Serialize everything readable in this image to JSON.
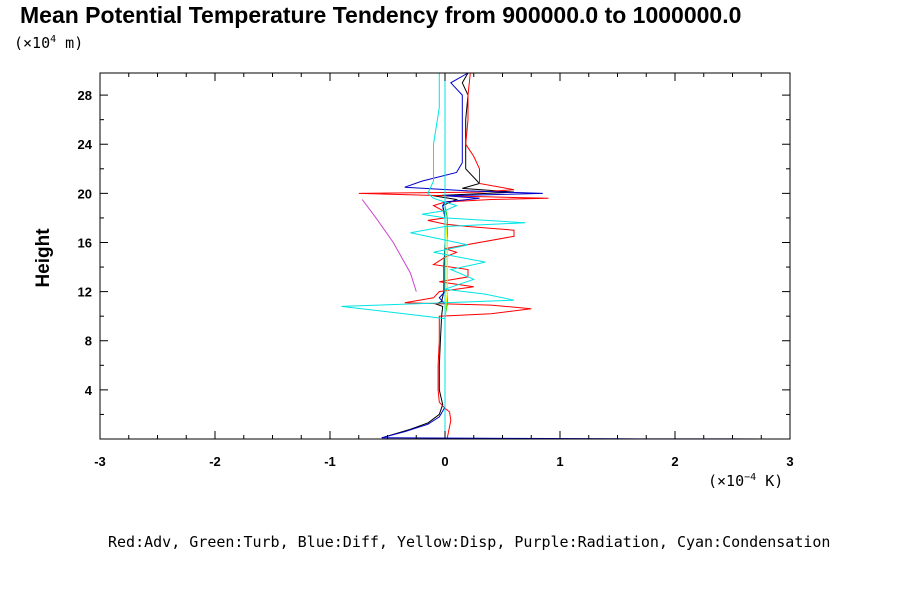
{
  "chart_data": {
    "type": "line",
    "title": "Mean Potential Temperature Tendency from 900000.0 to 1000000.0",
    "ylabel": "Height",
    "y_unit": {
      "prefix": "(×10",
      "exp": "4",
      "suffix": " m)"
    },
    "x_unit": {
      "prefix": "(×10",
      "exp": "−4",
      "suffix": " K)"
    },
    "legend_text": "Red:Adv, Green:Turb, Blue:Diff, Yellow:Disp, Purple:Radiation, Cyan:Condensation",
    "xlim": [
      -3,
      3
    ],
    "ylim": [
      0,
      29.8
    ],
    "x_ticks": [
      -3,
      -2,
      -1,
      0,
      1,
      2,
      3
    ],
    "x_tick_labels": [
      "-3",
      "-2",
      "-1",
      "0",
      "1",
      "2",
      "3"
    ],
    "y_ticks": [
      4,
      8,
      12,
      16,
      20,
      24,
      28
    ],
    "y_tick_labels": [
      "4",
      "8",
      "12",
      "16",
      "20",
      "24",
      "28"
    ],
    "series": [
      {
        "color": "#000000",
        "points": [
          [
            -0.55,
            0.1
          ],
          [
            -0.3,
            0.8
          ],
          [
            -0.15,
            1.3
          ],
          [
            -0.05,
            2
          ],
          [
            -0.02,
            2.8
          ],
          [
            -0.05,
            4
          ],
          [
            -0.05,
            6
          ],
          [
            -0.04,
            8
          ],
          [
            -0.03,
            10
          ],
          [
            -0.02,
            10.8
          ],
          [
            -0.08,
            11
          ],
          [
            -0.03,
            11.2
          ],
          [
            -0.01,
            12
          ],
          [
            -0.01,
            14
          ],
          [
            0.0,
            16
          ],
          [
            0.0,
            18
          ],
          [
            -0.02,
            19
          ],
          [
            0.1,
            19.5
          ],
          [
            -0.1,
            19.8
          ],
          [
            0.6,
            20.1
          ],
          [
            0.15,
            20.4
          ],
          [
            0.3,
            20.8
          ],
          [
            0.18,
            22
          ],
          [
            0.18,
            24
          ],
          [
            0.18,
            26
          ],
          [
            0.2,
            28
          ],
          [
            0.15,
            29
          ],
          [
            0.2,
            29.8
          ]
        ]
      },
      {
        "color": "#ff0000",
        "points": [
          [
            0.02,
            0.1
          ],
          [
            0.05,
            1.5
          ],
          [
            0.04,
            2.2
          ],
          [
            0.0,
            2.5
          ],
          [
            -0.05,
            3
          ],
          [
            -0.06,
            4
          ],
          [
            -0.06,
            6
          ],
          [
            -0.05,
            8
          ],
          [
            -0.05,
            10
          ],
          [
            0.4,
            10.2
          ],
          [
            0.75,
            10.6
          ],
          [
            0.4,
            10.9
          ],
          [
            -0.35,
            11.1
          ],
          [
            -0.1,
            11.5
          ],
          [
            -0.05,
            12
          ],
          [
            0.25,
            12.4
          ],
          [
            -0.05,
            12.8
          ],
          [
            0.2,
            13.2
          ],
          [
            0.2,
            13.8
          ],
          [
            -0.1,
            14.2
          ],
          [
            0.0,
            14.8
          ],
          [
            0.1,
            15.2
          ],
          [
            0.0,
            15.5
          ],
          [
            0.6,
            16.5
          ],
          [
            0.6,
            17
          ],
          [
            0.2,
            17.3
          ],
          [
            0.0,
            17.5
          ],
          [
            -0.15,
            17.8
          ],
          [
            0.0,
            18
          ],
          [
            0.0,
            18.5
          ],
          [
            -0.1,
            19
          ],
          [
            0.0,
            19.3
          ],
          [
            0.4,
            19.5
          ],
          [
            0.9,
            19.6
          ],
          [
            0.0,
            19.8
          ],
          [
            -0.75,
            20.0
          ],
          [
            0.3,
            20.1
          ],
          [
            0.6,
            20.3
          ],
          [
            0.3,
            20.8
          ],
          [
            0.3,
            22
          ],
          [
            0.25,
            23
          ],
          [
            0.18,
            24
          ],
          [
            0.2,
            26
          ],
          [
            0.2,
            28
          ],
          [
            0.22,
            29.8
          ]
        ]
      },
      {
        "color": "#0000cc",
        "points": [
          [
            -0.55,
            0.1
          ],
          [
            -0.35,
            0.6
          ],
          [
            -0.15,
            1.2
          ],
          [
            -0.05,
            1.8
          ],
          [
            0.0,
            2.6
          ],
          [
            0.0,
            3
          ],
          [
            0.0,
            10
          ],
          [
            0.0,
            11
          ],
          [
            -0.05,
            11.5
          ],
          [
            0.0,
            12
          ],
          [
            0.0,
            18
          ],
          [
            -0.02,
            19
          ],
          [
            0.0,
            19.3
          ],
          [
            0.3,
            19.6
          ],
          [
            0.0,
            19.8
          ],
          [
            0.85,
            20.0
          ],
          [
            0.2,
            20.2
          ],
          [
            -0.35,
            20.5
          ],
          [
            -0.2,
            21
          ],
          [
            0.1,
            21.7
          ],
          [
            0.15,
            22.5
          ],
          [
            0.15,
            24
          ],
          [
            0.15,
            26
          ],
          [
            0.15,
            28
          ],
          [
            0.05,
            29
          ],
          [
            0.2,
            29.8
          ]
        ]
      },
      {
        "color": "#00cc00",
        "points": [
          [
            0.0,
            0.1
          ],
          [
            0.0,
            10
          ],
          [
            0.02,
            11
          ],
          [
            0.02,
            14
          ],
          [
            0.02,
            18
          ],
          [
            0.0,
            19
          ],
          [
            0.0,
            29.8
          ]
        ]
      },
      {
        "color": "#ffff00",
        "points": [
          [
            0.0,
            2.5
          ],
          [
            0.0,
            10
          ],
          [
            0.02,
            12
          ],
          [
            0.02,
            16
          ],
          [
            0.0,
            18
          ]
        ]
      },
      {
        "color": "#cc44cc",
        "points": [
          [
            -0.25,
            12.0
          ],
          [
            -0.3,
            13.5
          ],
          [
            -0.45,
            16
          ],
          [
            -0.6,
            18
          ],
          [
            -0.72,
            19.5
          ]
        ]
      },
      {
        "color": "#00e5e5",
        "points": [
          [
            0.0,
            0.1
          ],
          [
            0.0,
            9.8
          ],
          [
            -0.9,
            10.8
          ],
          [
            0.0,
            11.1
          ],
          [
            0.6,
            11.3
          ],
          [
            0.35,
            11.8
          ],
          [
            0.0,
            12.2
          ],
          [
            0.25,
            13
          ],
          [
            0.05,
            13.8
          ],
          [
            0.35,
            14.4
          ],
          [
            -0.1,
            15.2
          ],
          [
            0.2,
            15.8
          ],
          [
            -0.3,
            16.8
          ],
          [
            0.0,
            17.3
          ],
          [
            0.7,
            17.6
          ],
          [
            0.0,
            18.0
          ],
          [
            -0.2,
            18.3
          ],
          [
            0.0,
            18.6
          ],
          [
            0.1,
            19.0
          ],
          [
            0.0,
            19.3
          ],
          [
            -0.1,
            19.6
          ],
          [
            -0.15,
            20.0
          ],
          [
            -0.1,
            21
          ],
          [
            -0.1,
            24
          ],
          [
            -0.05,
            27
          ],
          [
            -0.05,
            29.8
          ]
        ]
      },
      {
        "color": "#00e5e5",
        "points": [
          [
            0.0,
            0.0
          ],
          [
            0.0,
            29.8
          ]
        ]
      },
      {
        "color": "#0000cc",
        "points": [
          [
            -0.55,
            0.1
          ],
          [
            0.6,
            0.05
          ],
          [
            1.5,
            0.02
          ],
          [
            2.5,
            0.01
          ],
          [
            3.0,
            0.0
          ]
        ]
      }
    ]
  }
}
